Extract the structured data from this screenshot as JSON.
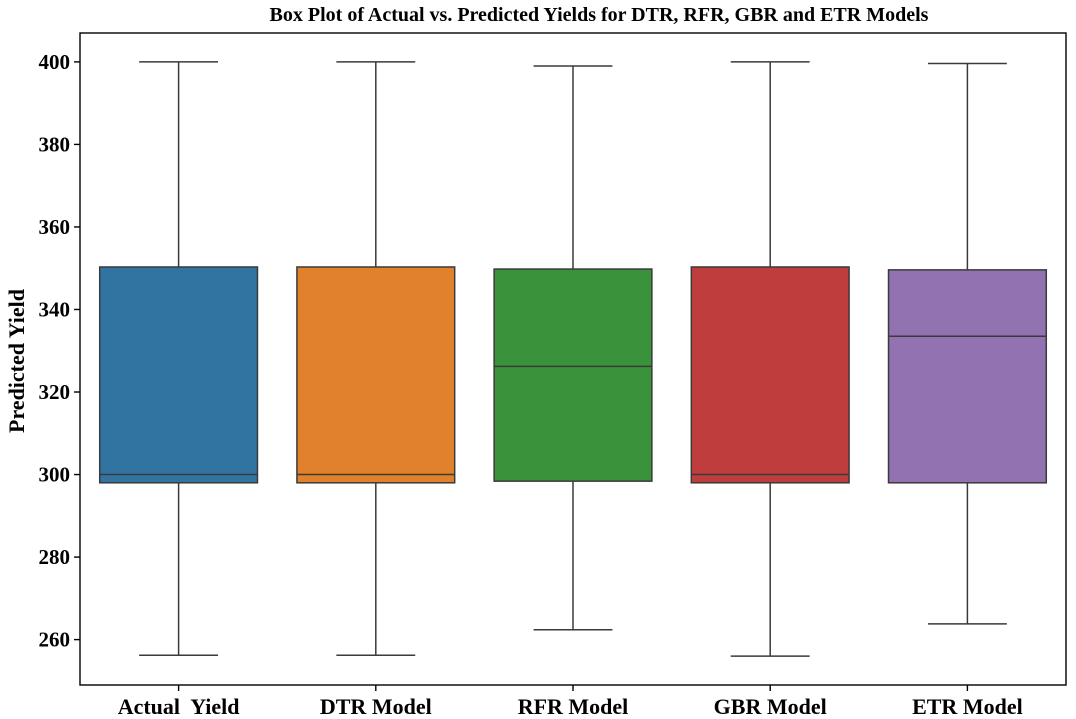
{
  "chart_data": {
    "type": "box",
    "title": "Box Plot of Actual vs. Predicted Yields for DTR, RFR, GBR and ETR Models",
    "xlabel": "",
    "ylabel": "Predicted Yield",
    "ylim": [
      249,
      407
    ],
    "yticks": [
      260,
      280,
      300,
      320,
      340,
      360,
      380,
      400
    ],
    "grid": false,
    "categories": [
      "Actual  Yield",
      "DTR Model",
      "RFR Model",
      "GBR Model",
      "ETR Model"
    ],
    "boxes": [
      {
        "min": 256.2,
        "q1": 298,
        "median": 300,
        "q3": 350.3,
        "max": 400,
        "color": "#3274a1"
      },
      {
        "min": 256.2,
        "q1": 298,
        "median": 300,
        "q3": 350.3,
        "max": 400,
        "color": "#e1812c"
      },
      {
        "min": 262.4,
        "q1": 298.4,
        "median": 326.2,
        "q3": 349.8,
        "max": 399,
        "color": "#3a923a"
      },
      {
        "min": 256,
        "q1": 298,
        "median": 300,
        "q3": 350.3,
        "max": 400,
        "color": "#c03d3e"
      },
      {
        "min": 263.8,
        "q1": 298,
        "median": 333.5,
        "q3": 349.6,
        "max": 399.6,
        "color": "#9372b2"
      }
    ]
  }
}
